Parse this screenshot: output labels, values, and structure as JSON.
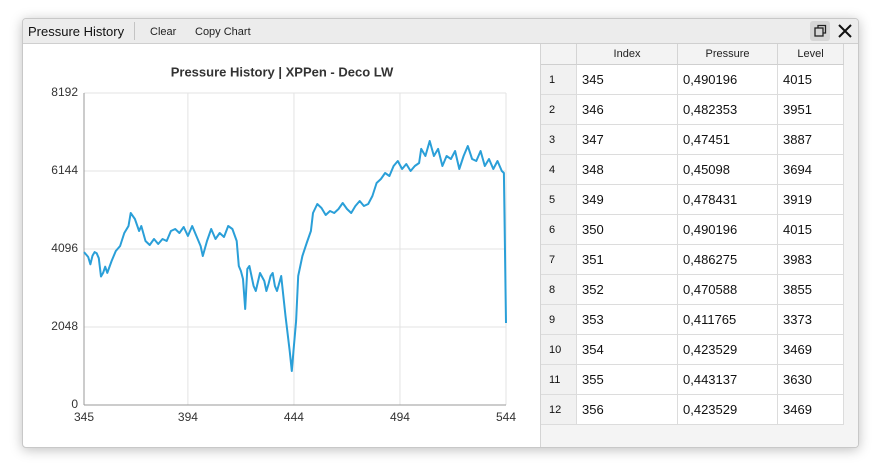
{
  "window": {
    "title": "Pressure History",
    "buttons": [
      "Clear",
      "Copy Chart"
    ]
  },
  "chart_data": {
    "type": "line",
    "title": "Pressure History | XPPen - Deco LW",
    "color": "#2a9fd8",
    "grid": true,
    "x": [
      345,
      346,
      347,
      348,
      349,
      350,
      351,
      352,
      353,
      354,
      355,
      356,
      358,
      360,
      362,
      364,
      366,
      367,
      369,
      371,
      372,
      374,
      376,
      378,
      380,
      382,
      384,
      386,
      388,
      390,
      392,
      394,
      396,
      398,
      400,
      401,
      403,
      405,
      407,
      409,
      411,
      413,
      415,
      417,
      418,
      419,
      420,
      421,
      422,
      423,
      425,
      426,
      428,
      430,
      431,
      432,
      433,
      434,
      435,
      436,
      438,
      440,
      442,
      443,
      444,
      445,
      446,
      448,
      450,
      452,
      453,
      455,
      457,
      459,
      461,
      463,
      465,
      467,
      469,
      471,
      473,
      475,
      477,
      479,
      481,
      483,
      485,
      487,
      489,
      491,
      493,
      495,
      497,
      499,
      501,
      503,
      504,
      506,
      508,
      510,
      512,
      514,
      516,
      518,
      520,
      522,
      524,
      526,
      528,
      530,
      532,
      534,
      536,
      538,
      540,
      542,
      543,
      544
    ],
    "values": [
      4015,
      3951,
      3887,
      3694,
      3919,
      4015,
      3983,
      3855,
      3373,
      3469,
      3630,
      3469,
      3780,
      4044,
      4175,
      4517,
      4700,
      5042,
      4884,
      4569,
      4700,
      4306,
      4202,
      4359,
      4228,
      4359,
      4306,
      4569,
      4622,
      4517,
      4674,
      4438,
      4700,
      4438,
      4175,
      3913,
      4306,
      4622,
      4359,
      4517,
      4412,
      4700,
      4622,
      4306,
      3650,
      3519,
      3309,
      2521,
      3571,
      3650,
      3125,
      2994,
      3466,
      3256,
      2994,
      3177,
      3388,
      3466,
      3125,
      2994,
      3388,
      2337,
      1418,
      893,
      1549,
      2206,
      3388,
      3913,
      4254,
      4569,
      5042,
      5278,
      5173,
      4989,
      5094,
      5042,
      5147,
      5305,
      5147,
      5042,
      5226,
      5357,
      5226,
      5278,
      5488,
      5830,
      5935,
      6092,
      6014,
      6276,
      6407,
      6197,
      6329,
      6145,
      6276,
      6355,
      6723,
      6539,
      6933,
      6539,
      6723,
      6276,
      6539,
      6460,
      6670,
      6197,
      6539,
      6801,
      6460,
      6407,
      6670,
      6276,
      6460,
      6197,
      6407,
      6145,
      6092,
      2153
    ],
    "xlim": [
      345,
      544
    ],
    "xticks": [
      345,
      394,
      444,
      494,
      544
    ],
    "ylim": [
      0,
      8192
    ],
    "yticks": [
      0,
      2048,
      4096,
      6144,
      8192
    ]
  },
  "table": {
    "columns": [
      "Index",
      "Pressure",
      "Level"
    ],
    "rows": [
      [
        "1",
        345,
        "0,490196",
        4015
      ],
      [
        "2",
        346,
        "0,482353",
        3951
      ],
      [
        "3",
        347,
        "0,47451",
        3887
      ],
      [
        "4",
        348,
        "0,45098",
        3694
      ],
      [
        "5",
        349,
        "0,478431",
        3919
      ],
      [
        "6",
        350,
        "0,490196",
        4015
      ],
      [
        "7",
        351,
        "0,486275",
        3983
      ],
      [
        "8",
        352,
        "0,470588",
        3855
      ],
      [
        "9",
        353,
        "0,411765",
        3373
      ],
      [
        "10",
        354,
        "0,423529",
        3469
      ],
      [
        "11",
        355,
        "0,443137",
        3630
      ],
      [
        "12",
        356,
        "0,423529",
        3469
      ]
    ]
  }
}
